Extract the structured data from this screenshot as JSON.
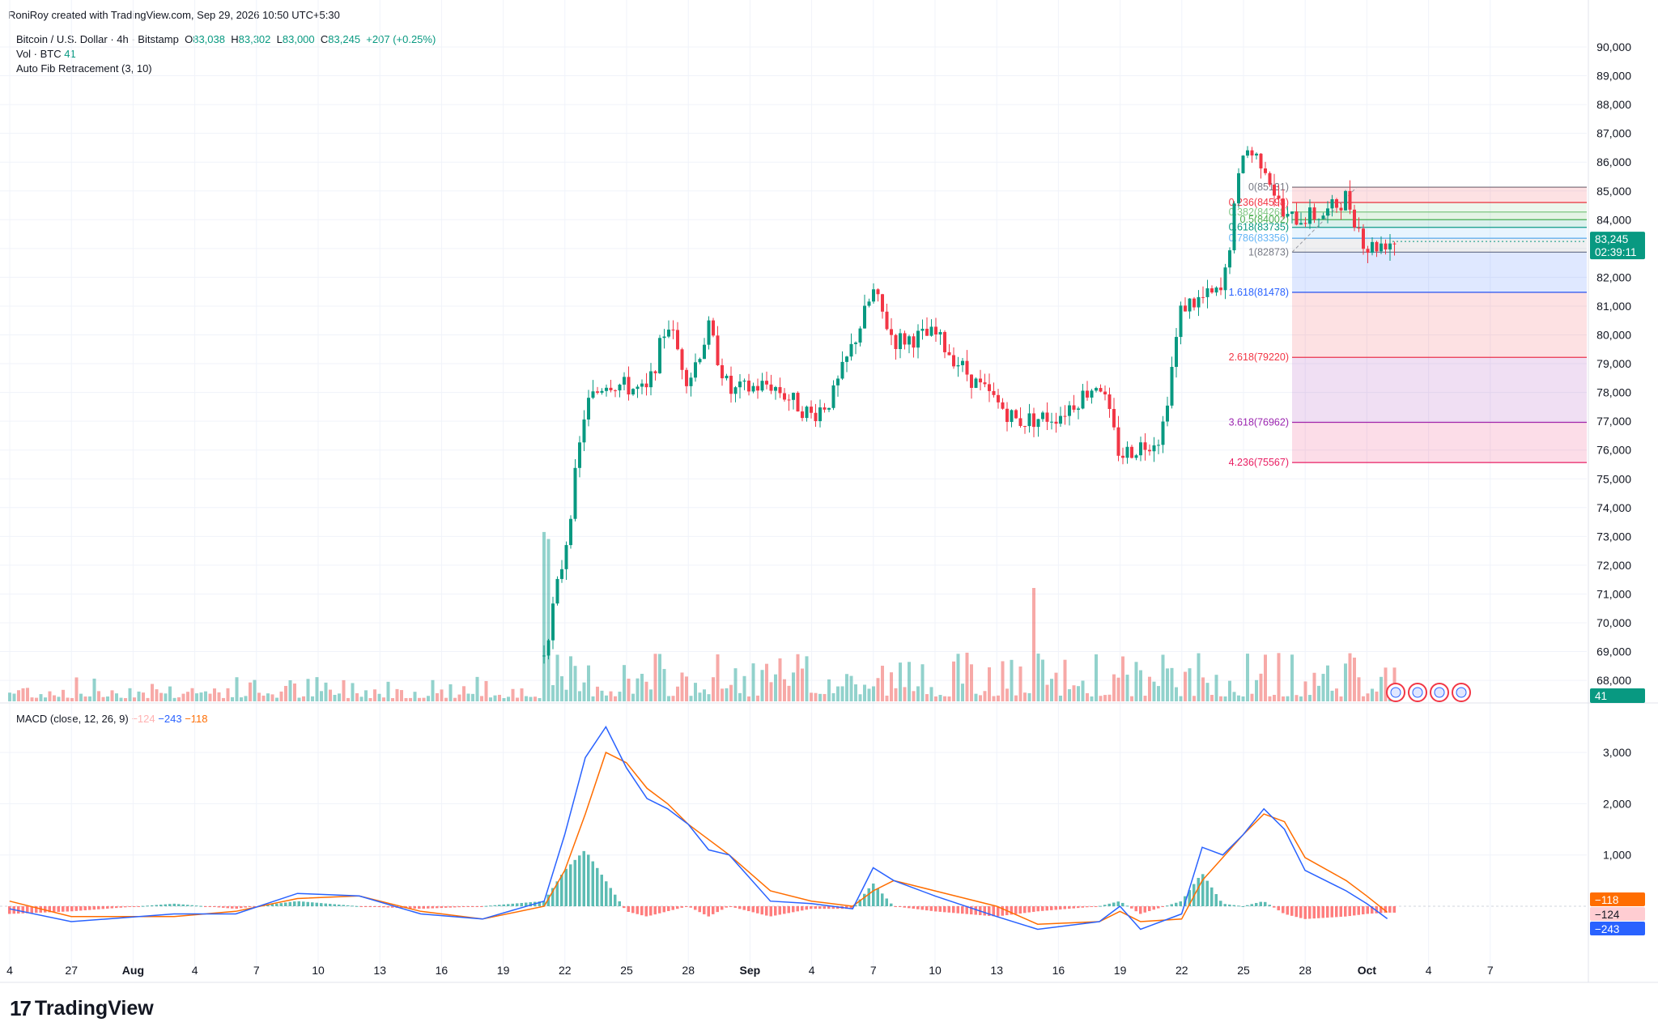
{
  "header": {
    "attribution": "RoniRoy created with TradingView.com, Sep 29, 2026 10:50 UTC+5:30"
  },
  "legend": {
    "symbol": "Bitcoin / U.S. Dollar · 4h · Bitstamp",
    "o_label": "O",
    "o": "83,038",
    "h_label": "H",
    "h": "83,302",
    "l_label": "L",
    "l": "83,000",
    "c_label": "C",
    "c": "83,245",
    "change": "+207 (+0.25%)",
    "vol_label": "Vol · BTC",
    "vol": "41",
    "fib_label": "Auto Fib Retracement (3, 10)",
    "macd_label": "MACD (close, 12, 26, 9)",
    "macd_hist": "−124",
    "macd_line": "−243",
    "macd_signal": "−118"
  },
  "price_badge": {
    "price": "83,245",
    "countdown": "02:39:11"
  },
  "vol_badge": "41",
  "macd_badges": {
    "signal": "−118",
    "hist": "−124",
    "macd": "−243"
  },
  "brand": {
    "name": "TradingView",
    "mark": "17"
  },
  "colors": {
    "up": "#089981",
    "down": "#f23645",
    "macd": "#2962ff",
    "signal": "#ff6d00",
    "hist_up": "#26a69a",
    "hist_down": "#ff5252"
  },
  "chart_data": [
    {
      "type": "candlestick",
      "symbol": "BTCUSD",
      "timeframe": "4h",
      "x_ticks": [
        "4",
        "27",
        "Aug",
        "4",
        "7",
        "10",
        "13",
        "16",
        "19",
        "22",
        "25",
        "28",
        "Sep",
        "4",
        "7",
        "10",
        "13",
        "16",
        "19",
        "22",
        "25",
        "28",
        "Oct",
        "4",
        "7"
      ],
      "y_ticks": [
        "68,000",
        "69,000",
        "70,000",
        "71,000",
        "72,000",
        "73,000",
        "74,000",
        "75,000",
        "76,000",
        "77,000",
        "78,000",
        "79,000",
        "80,000",
        "81,000",
        "82,000",
        "83,000",
        "84,000",
        "85,000",
        "86,000",
        "87,000",
        "88,000",
        "89,000",
        "90,000"
      ],
      "ylim": [
        67500,
        90500
      ],
      "path_points": [
        {
          "x": "Aug 19",
          "y": 69000
        },
        {
          "x": "Aug 20",
          "y": 72500
        },
        {
          "x": "Aug 21",
          "y": 77500
        },
        {
          "x": "Aug 22",
          "y": 78400
        },
        {
          "x": "Aug 24",
          "y": 78000
        },
        {
          "x": "Aug 25",
          "y": 80500
        },
        {
          "x": "Aug 26",
          "y": 78400
        },
        {
          "x": "Aug 27",
          "y": 80200
        },
        {
          "x": "Aug 28",
          "y": 78000
        },
        {
          "x": "Aug 30",
          "y": 78300
        },
        {
          "x": "Sep 1",
          "y": 77200
        },
        {
          "x": "Sep 2",
          "y": 77800
        },
        {
          "x": "Sep 4",
          "y": 81500
        },
        {
          "x": "Sep 5",
          "y": 79800
        },
        {
          "x": "Sep 7",
          "y": 80000
        },
        {
          "x": "Sep 9",
          "y": 78300
        },
        {
          "x": "Sep 11",
          "y": 77000
        },
        {
          "x": "Sep 13",
          "y": 77200
        },
        {
          "x": "Sep 15",
          "y": 78400
        },
        {
          "x": "Sep 16",
          "y": 75800
        },
        {
          "x": "Sep 18",
          "y": 76500
        },
        {
          "x": "Sep 19",
          "y": 81000
        },
        {
          "x": "Sep 21",
          "y": 81500
        },
        {
          "x": "Sep 22",
          "y": 86500
        },
        {
          "x": "Sep 23",
          "y": 86000
        },
        {
          "x": "Sep 24",
          "y": 84000
        },
        {
          "x": "Sep 26",
          "y": 84200
        },
        {
          "x": "Sep 27",
          "y": 84800
        },
        {
          "x": "Sep 28",
          "y": 83000
        },
        {
          "x": "Sep 29",
          "y": 83245
        }
      ],
      "volume_spikes": [
        {
          "x": "Aug 19",
          "value": "high"
        },
        {
          "x": "Sep 11",
          "value": "high"
        }
      ]
    },
    {
      "type": "fibonacci",
      "levels": [
        {
          "ratio": "0",
          "price": "85131"
        },
        {
          "ratio": "0.236",
          "price": "84598"
        },
        {
          "ratio": "0.382",
          "price": "84268"
        },
        {
          "ratio": "0.5",
          "price": "84002"
        },
        {
          "ratio": "0.618",
          "price": "83735"
        },
        {
          "ratio": "0.786",
          "price": "83356"
        },
        {
          "ratio": "1",
          "price": "82873"
        },
        {
          "ratio": "1.618",
          "price": "81478"
        },
        {
          "ratio": "2.618",
          "price": "79220"
        },
        {
          "ratio": "3.618",
          "price": "76962"
        },
        {
          "ratio": "4.236",
          "price": "75567"
        }
      ],
      "label_texts": [
        "0(85131)",
        "0.236(84598)",
        "0.382(84268)",
        "0.5(84002)",
        "0.618(83735)",
        "0.786(83356)",
        "1(82873)",
        "1.618(81478)",
        "2.618(79220)",
        "3.618(76962)",
        "4.236(75567)"
      ]
    },
    {
      "type": "line",
      "name": "MACD (close, 12, 26, 9)",
      "y_ticks": [
        "1,000",
        "2,000",
        "3,000"
      ],
      "ylim": [
        -700,
        3500
      ],
      "x": [
        "Jul 24",
        "Jul 27",
        "Aug 1",
        "Aug 4",
        "Aug 7",
        "Aug 10",
        "Aug 13",
        "Aug 16",
        "Aug 19",
        "Aug 20",
        "Aug 21",
        "Aug 22",
        "Aug 23",
        "Aug 24",
        "Aug 25",
        "Aug 26",
        "Aug 27",
        "Aug 28",
        "Aug 30",
        "Sep 1",
        "Sep 3",
        "Sep 4",
        "Sep 5",
        "Sep 7",
        "Sep 10",
        "Sep 12",
        "Sep 15",
        "Sep 16",
        "Sep 17",
        "Sep 19",
        "Sep 20",
        "Sep 21",
        "Sep 22",
        "Sep 23",
        "Sep 24",
        "Sep 25",
        "Sep 27",
        "Sep 28",
        "Sep 29"
      ],
      "macd": [
        -50,
        -300,
        -150,
        -150,
        250,
        200,
        -150,
        -250,
        100,
        1400,
        2900,
        3500,
        2700,
        2100,
        1900,
        1600,
        1100,
        1000,
        100,
        50,
        -50,
        750,
        500,
        200,
        -200,
        -450,
        -300,
        0,
        -450,
        -150,
        1150,
        1000,
        1400,
        1900,
        1500,
        700,
        300,
        50,
        -243
      ],
      "signal": [
        100,
        -200,
        -200,
        -100,
        150,
        200,
        -100,
        -250,
        0,
        700,
        1800,
        3000,
        2800,
        2300,
        2000,
        1600,
        1300,
        1000,
        300,
        100,
        0,
        300,
        500,
        300,
        0,
        -350,
        -300,
        -100,
        -300,
        -250,
        500,
        950,
        1400,
        1800,
        1650,
        950,
        500,
        200,
        -118
      ]
    }
  ]
}
